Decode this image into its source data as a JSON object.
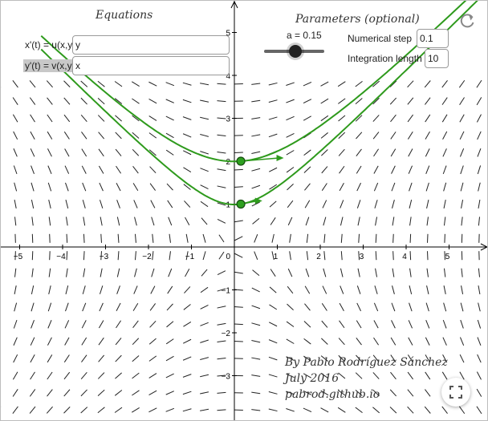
{
  "panels": {
    "equations_title": "Equations",
    "parameters_title": "Parameters (optional)"
  },
  "equations": {
    "x_label": "x'(t) = u(x,y)",
    "x_value": "y",
    "y_label": "y'(t) = v(x,y)",
    "y_value": "x"
  },
  "parameters": {
    "slider_label": "a = 0.15",
    "slider_value": 0.15,
    "step_label": "Numerical step",
    "step_value": "0.1",
    "length_label": "Integration length",
    "length_value": "10"
  },
  "credits": {
    "author": "By Pablo Rodríguez Sánchez",
    "date": "July 2016",
    "site": "pabrod.github.io"
  },
  "icons": {
    "refresh": "refresh-icon",
    "fullscreen": "fullscreen-icon"
  },
  "chart_data": {
    "type": "line",
    "title": "",
    "xlabel": "",
    "ylabel": "",
    "xlim": [
      -5.5,
      5.9
    ],
    "ylim": [
      -3.8,
      5.6
    ],
    "x_ticks": [
      -5,
      -4,
      -3,
      -2,
      -1,
      1,
      2,
      3,
      4,
      5
    ],
    "y_ticks": [
      -3,
      -2,
      -1,
      1,
      2,
      3,
      4,
      5
    ],
    "y_tick_labels": [
      "−3",
      "−2",
      "−1",
      "1",
      "2",
      "3",
      "4",
      "5"
    ],
    "x_tick_labels": [
      "−5",
      "−4",
      "−3",
      "−2",
      "−1",
      "1",
      "2",
      "3",
      "4",
      "5"
    ],
    "origin_label": "0",
    "direction_field": {
      "u": "y",
      "v": "x",
      "x_range": [
        -5.5,
        5.8
      ],
      "y_range": [
        -3.8,
        4.0
      ],
      "spacing": 0.4
    },
    "series": [
      {
        "color": "#2e9a1c",
        "initial_point": [
          0.15,
          2
        ],
        "x_range": [
          -4.5,
          5.9
        ]
      },
      {
        "color": "#2e9a1c",
        "initial_point": [
          0.15,
          1
        ],
        "x_range": [
          -4.5,
          5.9
        ]
      }
    ],
    "grid": false,
    "colors": {
      "trajectory": "#2e9a1c",
      "point": "#2ea020",
      "field": "#222222",
      "axis": "#000000"
    }
  }
}
